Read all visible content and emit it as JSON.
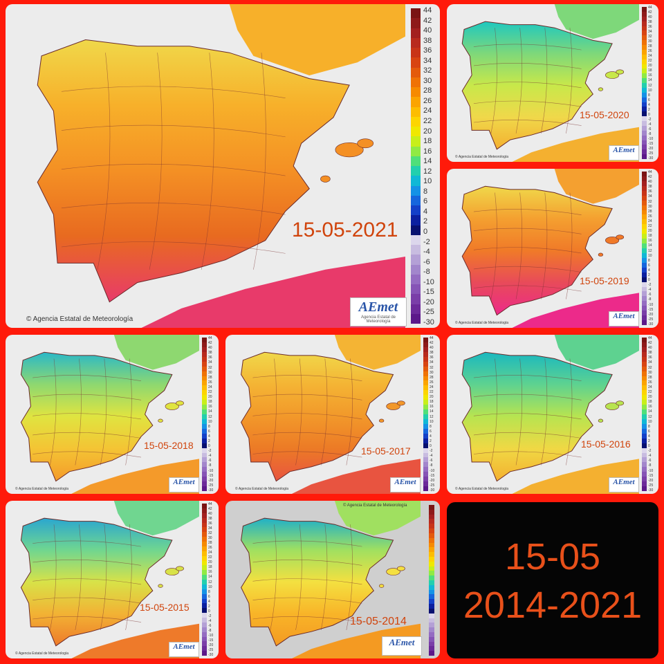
{
  "credit": "Agencia Estatal de Meteorología",
  "logo": {
    "text": "AEmet",
    "subtitle": "Agencia Estatal de Meteorología"
  },
  "legend_ticks": [
    "44",
    "42",
    "40",
    "38",
    "36",
    "34",
    "32",
    "30",
    "28",
    "26",
    "24",
    "22",
    "20",
    "18",
    "16",
    "14",
    "12",
    "10",
    "8",
    "6",
    "4",
    "2",
    "0",
    "-2",
    "-4",
    "-6",
    "-8",
    "-10",
    "-15",
    "-20",
    "-25",
    "-30"
  ],
  "legend_colors": [
    "#7a1414",
    "#8e1a1a",
    "#a32020",
    "#b82a1e",
    "#c83418",
    "#d84412",
    "#e45a0c",
    "#ef7206",
    "#f68a00",
    "#fba400",
    "#fdbd00",
    "#fdd500",
    "#f0e800",
    "#c8ef1a",
    "#90ea44",
    "#4fdf7a",
    "#22cfae",
    "#10b8d6",
    "#1592e6",
    "#1666dd",
    "#1440c8",
    "#0c20a0",
    "#081070",
    "#dcd6ec",
    "#c8bce0",
    "#b4a0d6",
    "#a286cc",
    "#946cc2",
    "#8654b6",
    "#7a3ea8",
    "#6c2a9a",
    "#5c188a"
  ],
  "panels": [
    {
      "id": "2021",
      "date": "15-05-2021",
      "palette": [
        "#f0d84a",
        "#f7b02a",
        "#f49024",
        "#e86a20",
        "#e83a6a"
      ]
    },
    {
      "id": "2020",
      "date": "15-05-2020",
      "palette": [
        "#1ec8c0",
        "#7ed87a",
        "#c8e84a",
        "#f0d84a",
        "#f4b030"
      ]
    },
    {
      "id": "2019",
      "date": "15-05-2019",
      "palette": [
        "#f0d84a",
        "#f4a030",
        "#f07a28",
        "#e84a5a",
        "#ec2a8a"
      ]
    },
    {
      "id": "2018",
      "date": "15-05-2018",
      "palette": [
        "#2ab8c8",
        "#8ed870",
        "#e0e440",
        "#f4c434",
        "#f49a2a"
      ]
    },
    {
      "id": "2017",
      "date": "15-05-2017",
      "palette": [
        "#f0d84a",
        "#f4b434",
        "#f2982a",
        "#ec7a26",
        "#e85440"
      ]
    },
    {
      "id": "2016",
      "date": "15-05-2016",
      "palette": [
        "#1ab8c0",
        "#5ed290",
        "#b8e450",
        "#f0d844",
        "#f4b030"
      ]
    },
    {
      "id": "2015",
      "date": "15-05-2015",
      "palette": [
        "#2aa6d0",
        "#70d690",
        "#d8e248",
        "#f2b234",
        "#ee7a2a"
      ]
    },
    {
      "id": "2014",
      "date": "15-05-2014",
      "palette": [
        "#20b0c8",
        "#a0e060",
        "#f4e040",
        "#f8b428",
        "#f49a22"
      ]
    }
  ],
  "summary": {
    "line1": "15-05",
    "line2": "2014-2021"
  }
}
